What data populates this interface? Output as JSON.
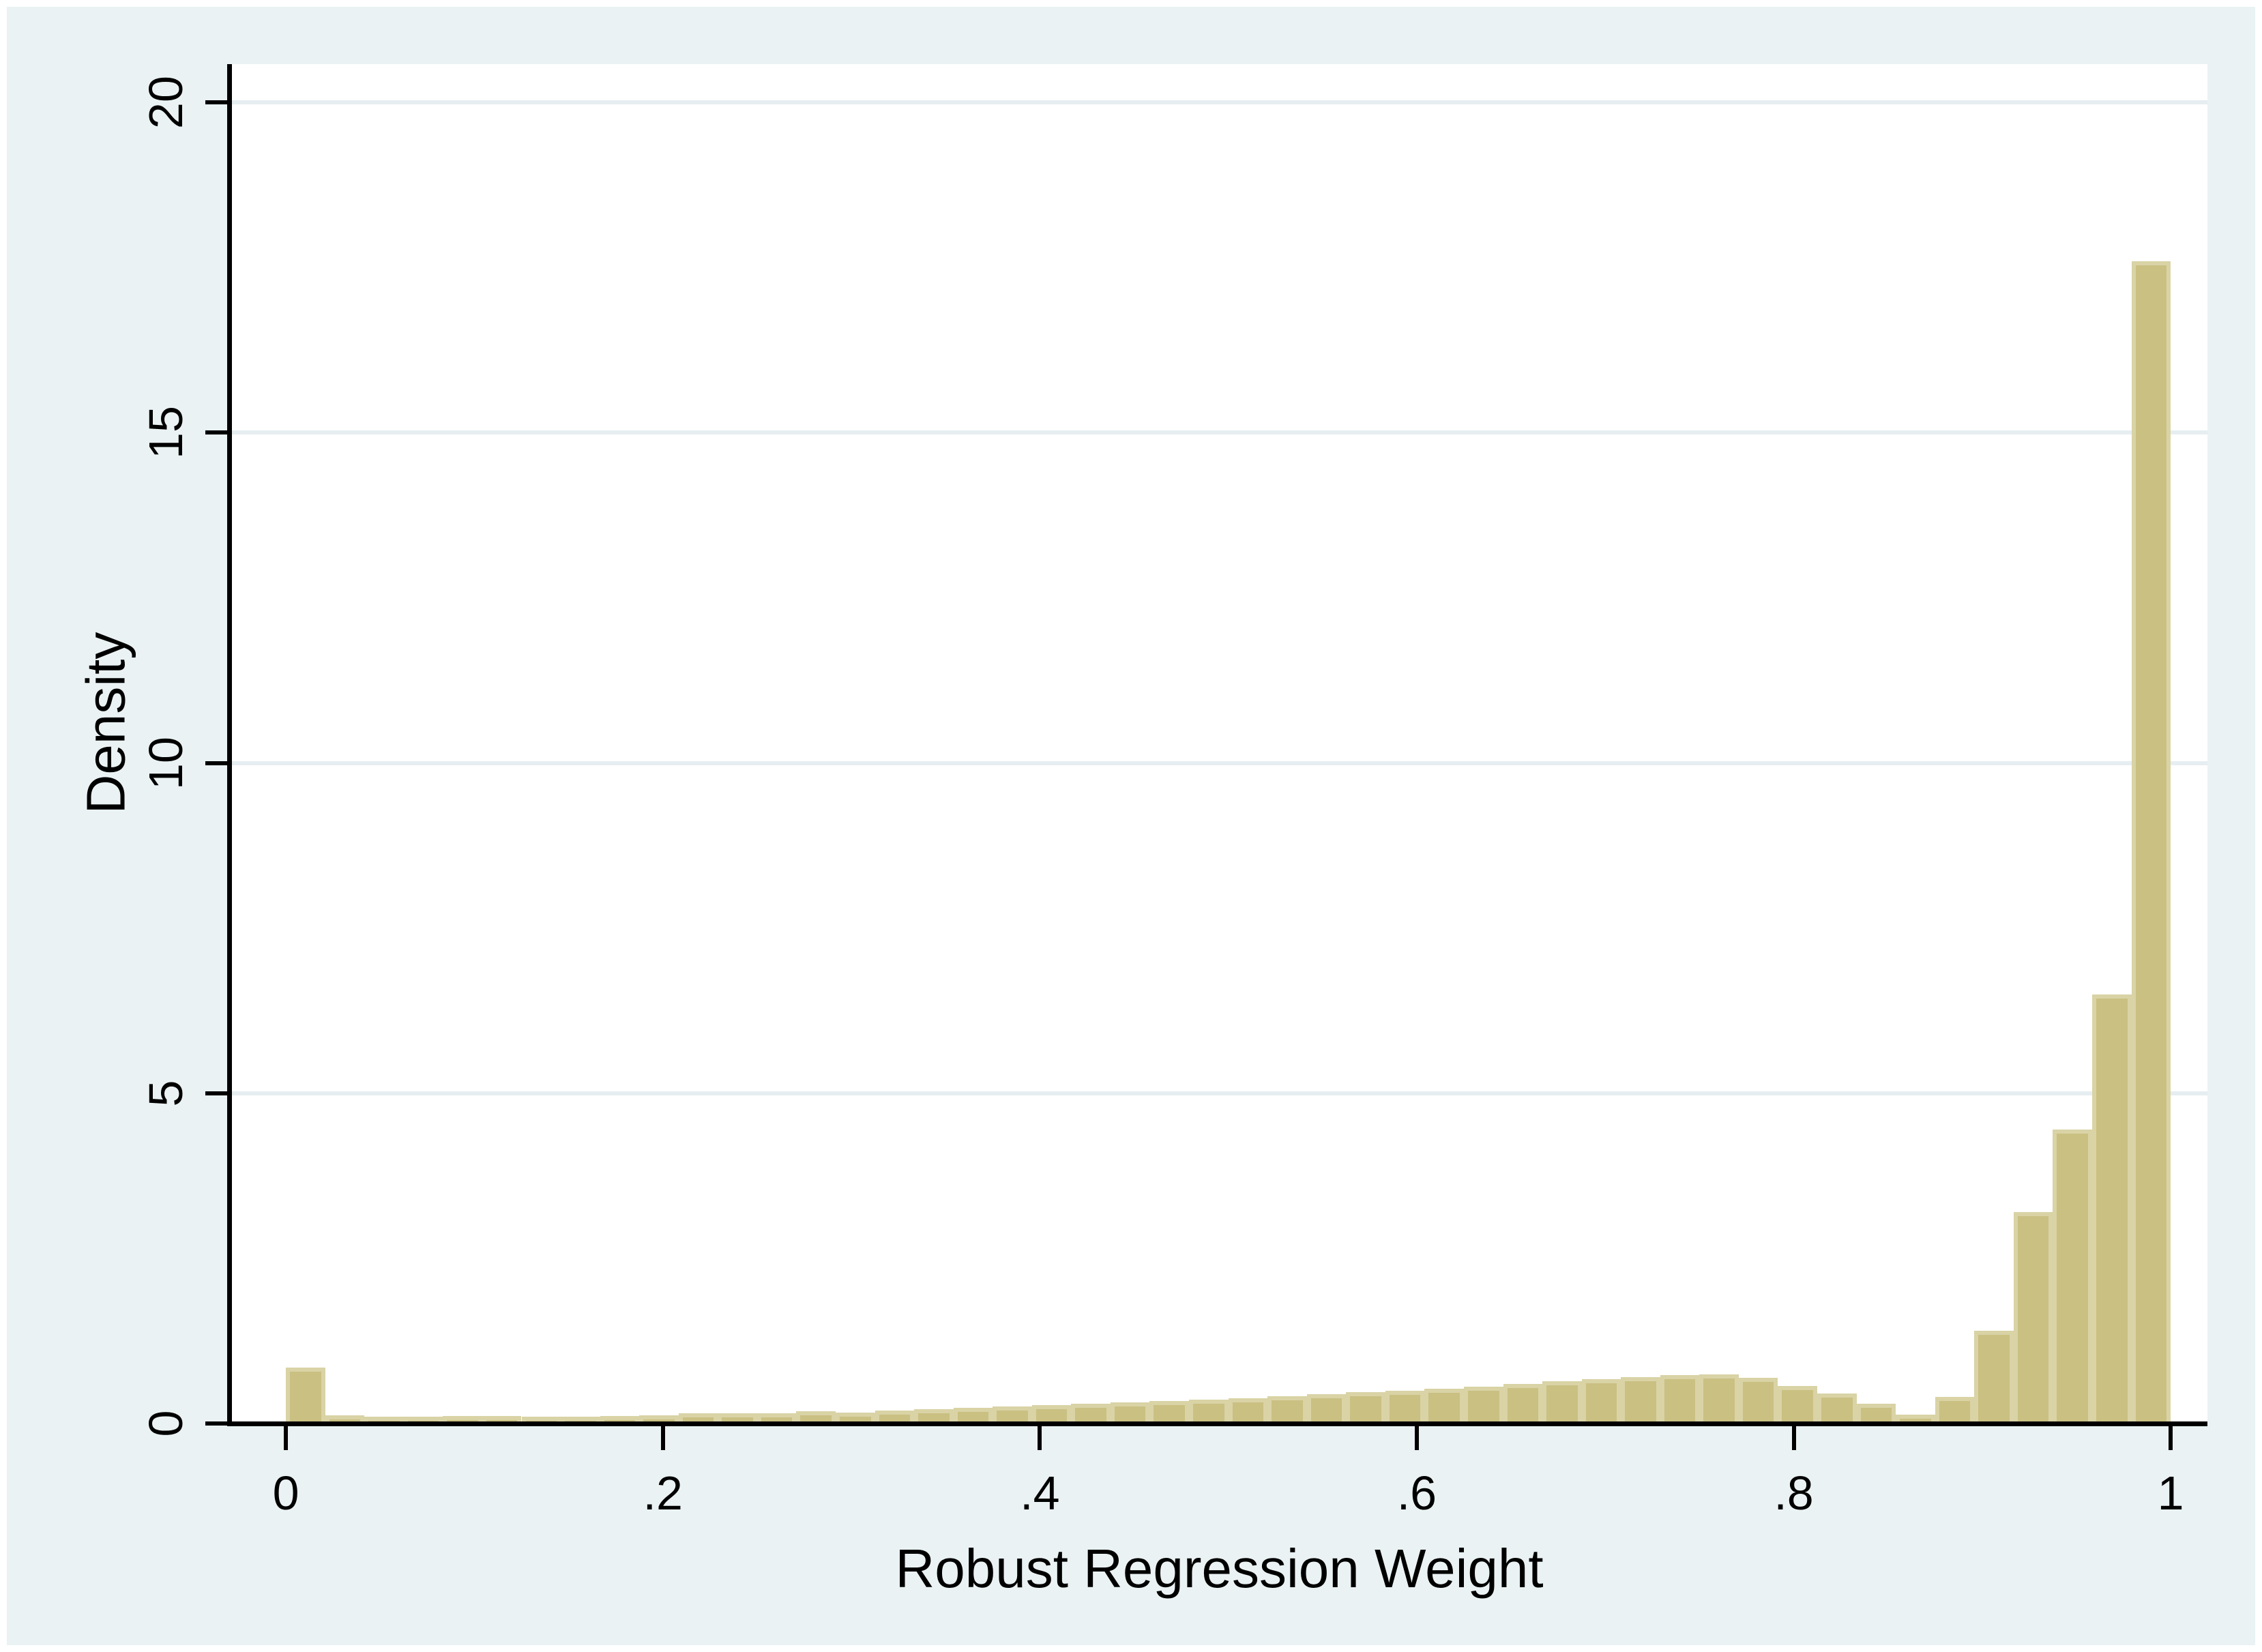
{
  "figure": {
    "kind": "stata-style histogram figure",
    "background_color": "#ffffff",
    "graph_region_color": "#eaf2f3",
    "plot_region_color": "#ffffff"
  },
  "style": {
    "bar_fill": "#c9c082",
    "bar_outline": "#d9d3a6",
    "grid_color": "#e6eef1",
    "axis_color": "#000000",
    "text_color": "#000000"
  },
  "chart_data": {
    "type": "bar",
    "subtype": "histogram",
    "title": "",
    "xlabel": "Robust Regression Weight",
    "ylabel": "Density",
    "xlim": [
      -0.029,
      1.0195
    ],
    "ylim": [
      0,
      20.58
    ],
    "grid": "horizontal gridlines at labeled y ticks",
    "legend": "none",
    "x_ticks": [
      {
        "value": 0.0,
        "label": "0"
      },
      {
        "value": 0.2,
        "label": ".2"
      },
      {
        "value": 0.4,
        "label": ".4"
      },
      {
        "value": 0.6,
        "label": ".6"
      },
      {
        "value": 0.8,
        "label": ".8"
      },
      {
        "value": 1.0,
        "label": "1"
      }
    ],
    "y_ticks": [
      {
        "value": 0,
        "label": "0"
      },
      {
        "value": 5,
        "label": "5"
      },
      {
        "value": 10,
        "label": "10"
      },
      {
        "value": 15,
        "label": "15"
      },
      {
        "value": 20,
        "label": "20"
      }
    ],
    "bins": {
      "start": 0.0,
      "width": 0.0208333,
      "count": 48
    },
    "bin_density_values": [
      0.85,
      0.12,
      0.1,
      0.1,
      0.11,
      0.11,
      0.1,
      0.1,
      0.11,
      0.12,
      0.15,
      0.15,
      0.16,
      0.19,
      0.17,
      0.2,
      0.22,
      0.24,
      0.26,
      0.28,
      0.3,
      0.32,
      0.34,
      0.36,
      0.38,
      0.41,
      0.44,
      0.47,
      0.5,
      0.53,
      0.56,
      0.6,
      0.64,
      0.67,
      0.7,
      0.73,
      0.74,
      0.69,
      0.57,
      0.45,
      0.3,
      0.13,
      0.4,
      1.4,
      3.2,
      4.45,
      6.5,
      17.6
    ]
  }
}
